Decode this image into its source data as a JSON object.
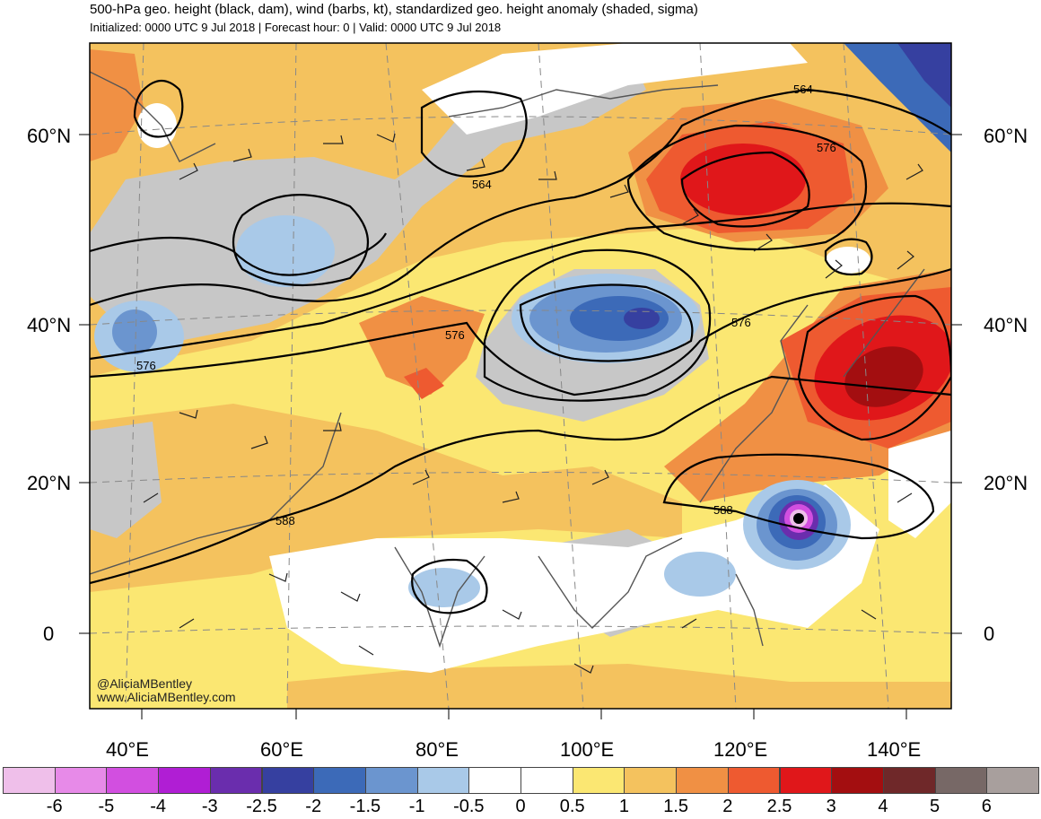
{
  "header": {
    "title": "500-hPa geo. height (black, dam), wind (barbs, kt), standardized geo. height anomaly (shaded, sigma)",
    "subtitle": "Initialized: 0000 UTC 9 Jul 2018 | Forecast hour: 0 | Valid: 0000 UTC 9 Jul 2018"
  },
  "latitudes": [
    "60°N",
    "40°N",
    "20°N",
    "0"
  ],
  "longitudes": [
    "40°E",
    "60°E",
    "80°E",
    "100°E",
    "120°E",
    "140°E"
  ],
  "contour_labels": [
    "564",
    "564",
    "576",
    "576",
    "576",
    "576",
    "588",
    "588"
  ],
  "credits": {
    "twitter": "@AliciaMBentley",
    "website": "www.AliciaMBentley.com"
  },
  "colorbar": {
    "labels": [
      "-6",
      "-5",
      "-4",
      "-3",
      "-2.5",
      "-2",
      "-1.5",
      "-1",
      "-0.5",
      "0",
      "0.5",
      "1",
      "1.5",
      "2",
      "2.5",
      "3",
      "4",
      "5",
      "6"
    ],
    "colors": [
      "#efbfea",
      "#e78ae8",
      "#d24fe0",
      "#b01ed4",
      "#6a2dad",
      "#3640a0",
      "#3c6ab8",
      "#6b95cf",
      "#a9c9e8",
      "#ffffff",
      "#ffffff",
      "#fbe772",
      "#f4c25e",
      "#f09044",
      "#ee5a30",
      "#e0171a",
      "#a30e10",
      "#6f2829",
      "#776866",
      "#a89f9d"
    ]
  }
}
